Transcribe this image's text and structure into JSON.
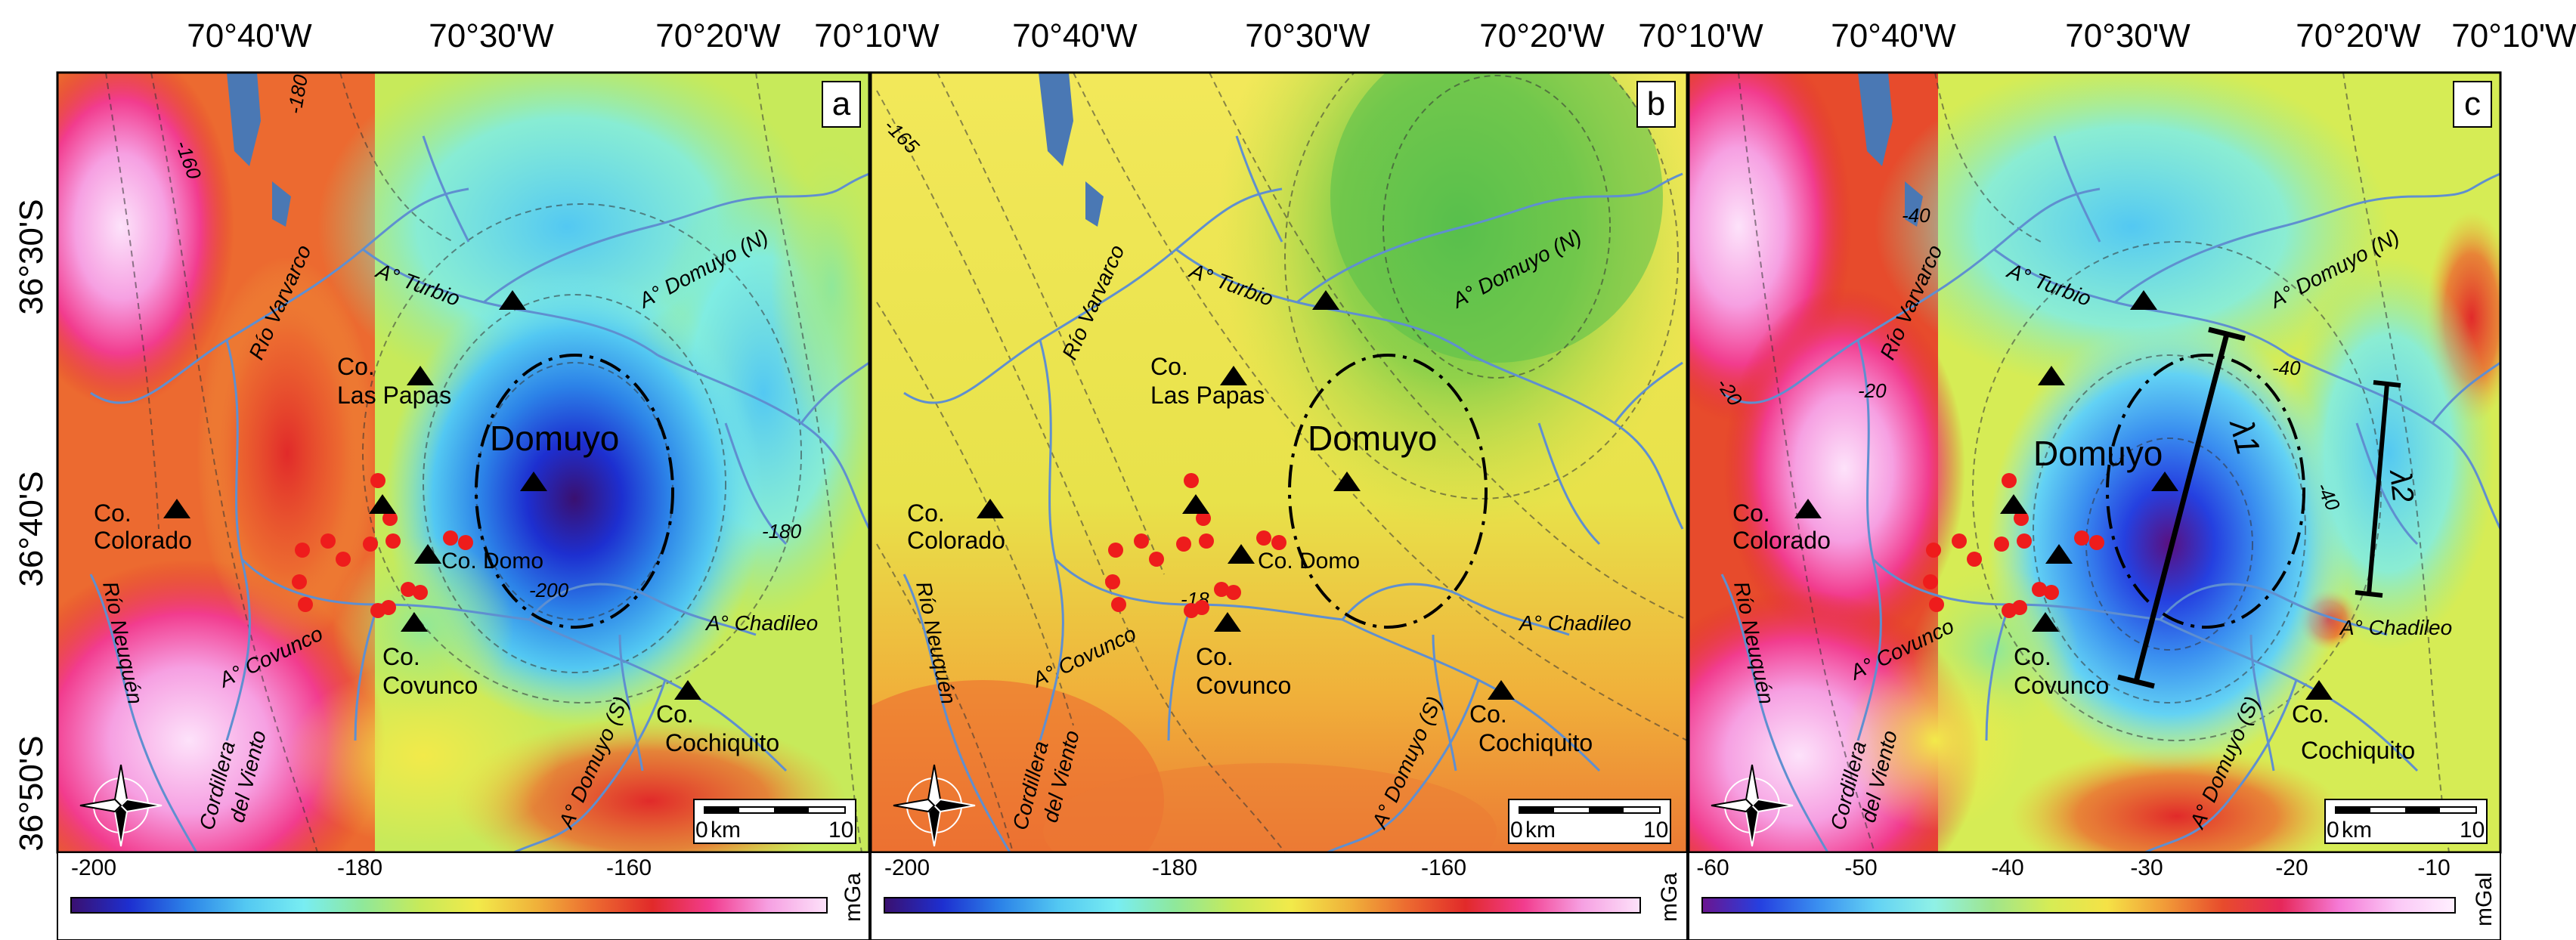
{
  "longitude_labels": [
    "70°40'W",
    "70°30'W",
    "70°20'W",
    "70°10'W"
  ],
  "latitude_labels": [
    "36°30'S",
    "36°40'S",
    "36°50'S"
  ],
  "colors": {
    "ramp_a": [
      "#3a1070",
      "#1d2fd0",
      "#2c83e8",
      "#53c8f2",
      "#78edf2",
      "#8fe89a",
      "#c7ea5a",
      "#f2ea4a",
      "#f0b23a",
      "#ec6a30",
      "#e12a2a",
      "#f23c8e",
      "#f6a0e2",
      "#fde2fa"
    ],
    "ramp_c": [
      "#6b1590",
      "#2540e0",
      "#3a8ff0",
      "#63d2f4",
      "#8ff1e6",
      "#9fe58c",
      "#d6ec55",
      "#f5e246",
      "#f19a38",
      "#e74b2c",
      "#e6285a",
      "#f57ad6",
      "#fbc8f6",
      "#fff0ff"
    ],
    "river": "#5f8fd0",
    "lake": "#4a78b4",
    "dots": "#ee1c1c"
  },
  "panels": [
    {
      "letter": "a",
      "unit": "mGa",
      "scale_ticks": [
        "-200",
        "-180",
        "-160"
      ],
      "contour_labels": [
        "-160",
        "-180",
        "-180",
        "-200"
      ],
      "extra_labels": []
    },
    {
      "letter": "b",
      "unit": "mGa",
      "scale_ticks": [
        "-200",
        "-180",
        "-160"
      ],
      "contour_labels": [
        "-165",
        "-18"
      ],
      "extra_labels": []
    },
    {
      "letter": "c",
      "unit": "mGal",
      "scale_ticks": [
        "-60",
        "-50",
        "-40",
        "-30",
        "-20",
        "-10"
      ],
      "contour_labels": [
        "-40",
        "-40",
        "-20",
        "-20",
        "-40"
      ],
      "extra_labels": [
        "λ1",
        "λ2"
      ]
    }
  ],
  "places": {
    "domuyo": "Domuyo",
    "co_las_papas_1": "Co.",
    "co_las_papas_2": "Las Papas",
    "co_colorado_1": "Co.",
    "co_colorado_2": "Colorado",
    "co_domo": "Co. Domo",
    "co_covunco_1": "Co.",
    "co_covunco_2": "Covunco",
    "co_cochiquito_1": "Co.",
    "co_cochiquito_2": "Cochiquito"
  },
  "rivers": {
    "turbio": "A° Turbio",
    "domuyo_n": "A° Domuyo (N)",
    "varvarco": "Río Varvarco",
    "covunco": "A° Covunco",
    "chadileo": "A° Chadileo",
    "domuyo_s": "A° Domuyo (S)",
    "neuquen": "Río Neuquén",
    "cordillera_1": "Cordillera",
    "cordillera_2": "del Viento"
  },
  "scalebar": {
    "zero": "0",
    "unit": "km",
    "ten": "10"
  }
}
